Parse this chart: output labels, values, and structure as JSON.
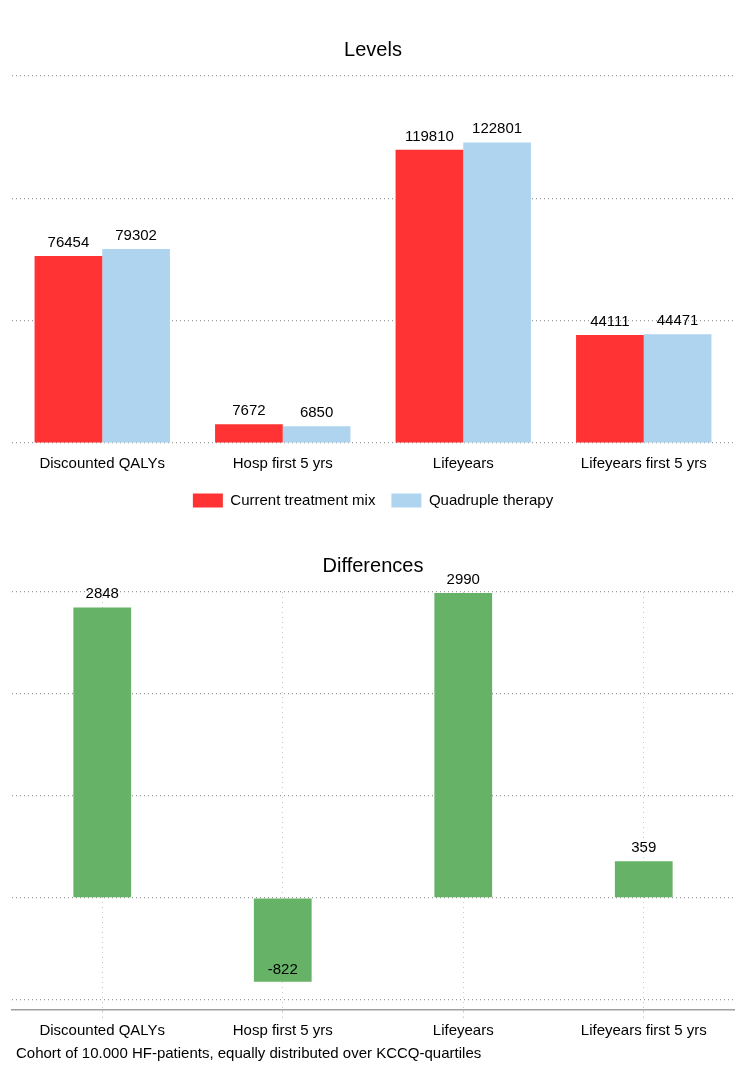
{
  "chart_data": [
    {
      "type": "bar",
      "title": "Levels",
      "categories": [
        "Discounted QALYs",
        "Hosp first 5 yrs",
        "Lifeyears",
        "Lifeyears first 5 yrs"
      ],
      "series": [
        {
          "name": "Current treatment mix",
          "color": "#ff3333",
          "values": [
            76454,
            7672,
            119810,
            44111
          ]
        },
        {
          "name": "Quadruple therapy",
          "color": "#aed4ef",
          "values": [
            79302,
            6850,
            122801,
            44471
          ]
        }
      ],
      "ylim": [
        0,
        150000
      ],
      "yticks": [
        {
          "value": 0,
          "label": null
        },
        {
          "value": 50000,
          "label": null
        },
        {
          "value": 100000,
          "label": null
        },
        {
          "value": 150000,
          "label": null
        }
      ],
      "tick_labels": "x",
      "grid": "y",
      "legend": "bottom",
      "data_labels": true
    },
    {
      "type": "bar",
      "title": "Differences",
      "categories": [
        "Discounted QALYs",
        "Hosp first 5 yrs",
        "Lifeyears",
        "Lifeyears first 5 yrs"
      ],
      "series": [
        {
          "color": "#66b266",
          "values": [
            2848,
            -822,
            2990,
            359
          ]
        }
      ],
      "ylim": [
        -1100,
        3000
      ],
      "yticks": [
        {
          "value": -1000,
          "label": null
        },
        {
          "value": 0,
          "label": null
        },
        {
          "value": 1000,
          "label": null
        },
        {
          "value": 2000,
          "label": null
        },
        {
          "value": 3000,
          "label": null
        }
      ],
      "tick_labels": "x",
      "grid": true,
      "data_labels": true,
      "annotations": [
        "Cohort of 10.000 HF-patients, equally distributed over KCCQ-quartiles"
      ]
    }
  ]
}
